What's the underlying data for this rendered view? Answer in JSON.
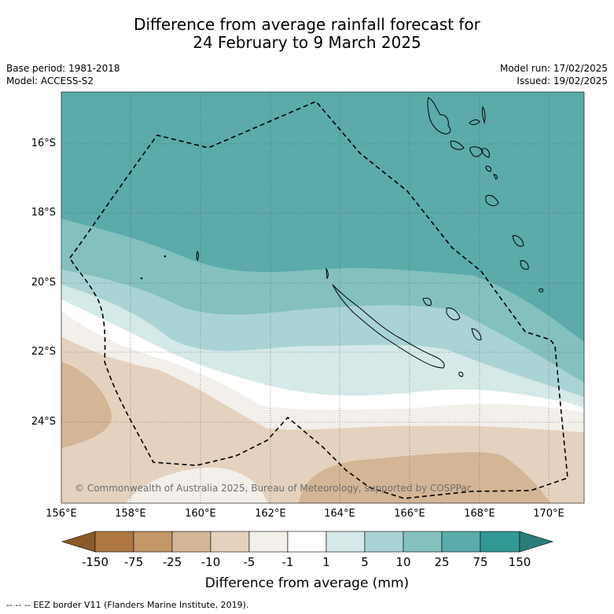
{
  "title_line1": "Difference from average rainfall forecast for",
  "title_line2": "24 February to 9 March 2025",
  "meta_left": {
    "base_period": "Base period: 1981-2018",
    "model": "Model: ACCESS-S2"
  },
  "meta_right": {
    "model_run": "Model run: 17/02/2025",
    "issued": "Issued: 19/02/2025"
  },
  "lat_labels": [
    "16°S",
    "18°S",
    "20°S",
    "22°S",
    "24°S"
  ],
  "lon_labels": [
    "156°E",
    "158°E",
    "160°E",
    "162°E",
    "164°E",
    "166°E",
    "168°E",
    "170°E"
  ],
  "copyright": "© Commonwealth of Australia 2025, Bureau of Meteorology, supported by COSPPac",
  "colorbar": {
    "ticks": [
      "-150",
      "-75",
      "-25",
      "-10",
      "-5",
      "-1",
      "1",
      "5",
      "10",
      "25",
      "75",
      "150"
    ],
    "colors": [
      "#8b5a2b",
      "#ae7843",
      "#c49769",
      "#d4b595",
      "#e5d2be",
      "#f3efea",
      "#ffffff",
      "#d5e9e8",
      "#aad4d3",
      "#84c0be",
      "#5aabaa",
      "#319894",
      "#2a7c78"
    ],
    "label": "Difference from average (mm)"
  },
  "footer": "-- -- -- EEZ border V11 (Flanders Marine Institute, 2019)."
}
